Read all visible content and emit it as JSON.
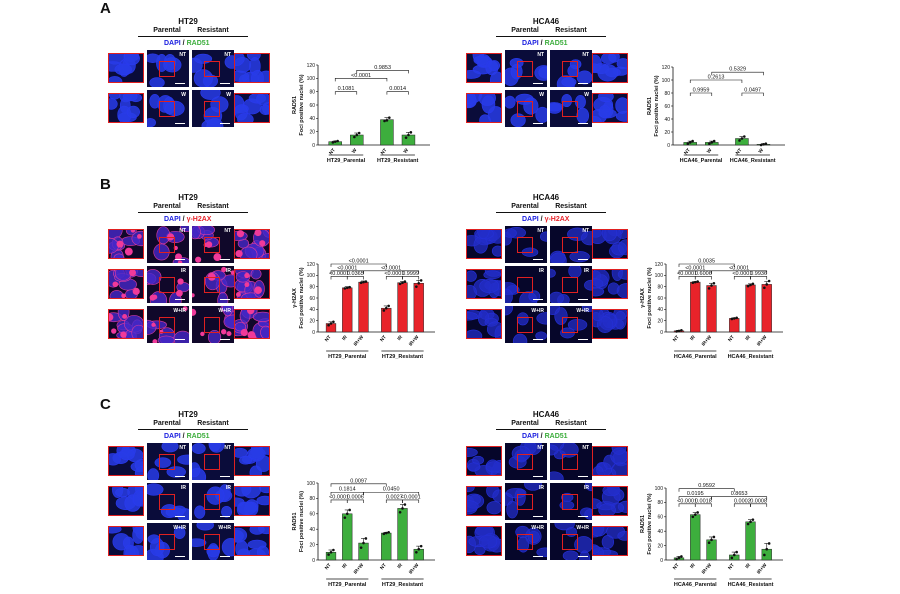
{
  "panels": {
    "A": "A",
    "B": "B",
    "C": "C"
  },
  "groups": {
    "parental": "Parental",
    "resistant": "Resistant"
  },
  "stains": {
    "dapi": "DAPI",
    "rad51": "RAD51",
    "h2ax": "γ-H2AX",
    "sep": "/"
  },
  "colors": {
    "green": "#3dae3d",
    "red": "#e8232a",
    "blue": "#1a1ee0",
    "frame": "#e02020"
  },
  "micro_panels": [
    {
      "id": "A1",
      "cell_line": "HT29",
      "stain": "rad51",
      "rows": [
        "NT",
        "W"
      ],
      "x": 108,
      "y": 17,
      "tint": "blue"
    },
    {
      "id": "A2",
      "cell_line": "HCA46",
      "stain": "rad51",
      "rows": [
        "NT",
        "W"
      ],
      "x": 466,
      "y": 17,
      "tint": "blue"
    },
    {
      "id": "B1",
      "cell_line": "HT29",
      "stain": "h2ax",
      "rows": [
        "NT",
        "IR",
        "W+IR"
      ],
      "x": 108,
      "y": 193,
      "tint": "pink"
    },
    {
      "id": "B2",
      "cell_line": "HCA46",
      "stain": "h2ax",
      "rows": [
        "NT",
        "IR",
        "W+IR"
      ],
      "x": 466,
      "y": 193,
      "tint": "dblue"
    },
    {
      "id": "C1",
      "cell_line": "HT29",
      "stain": "rad51",
      "rows": [
        "NT",
        "IR",
        "W+IR"
      ],
      "x": 108,
      "y": 410,
      "tint": "blue"
    },
    {
      "id": "C2",
      "cell_line": "HCA46",
      "stain": "rad51",
      "rows": [
        "NT",
        "IR",
        "W+IR"
      ],
      "x": 466,
      "y": 410,
      "tint": "dblue"
    }
  ],
  "chart_data": [
    {
      "type": "bar",
      "id": "A-HT29",
      "ylabel": [
        "RAD51",
        "Foci positive nuclei (%)"
      ],
      "ylim": [
        0,
        120
      ],
      "yticks": [
        0,
        20,
        40,
        60,
        80,
        100,
        120
      ],
      "color": "green",
      "groups": [
        "HT29_Parental",
        "HT29_Resistant"
      ],
      "tick_labels": [
        "NT",
        "W",
        "NT",
        "W"
      ],
      "values": [
        5,
        15,
        38,
        15
      ],
      "errors": [
        1,
        3,
        3,
        4
      ],
      "points": [
        [
          4,
          5,
          6
        ],
        [
          12,
          15,
          18
        ],
        [
          36,
          37,
          41
        ],
        [
          11,
          15,
          19
        ]
      ],
      "comparisons": [
        {
          "a": 0,
          "b": 1,
          "label": "0.1081",
          "y": 80
        },
        {
          "a": 2,
          "b": 3,
          "label": "0.0014",
          "y": 80
        },
        {
          "a": 0,
          "b": 2,
          "label": "<0.0001",
          "y": 100
        },
        {
          "a": 1,
          "b": 3,
          "label": "0.9853",
          "y": 112
        }
      ]
    },
    {
      "type": "bar",
      "id": "A-HCA46",
      "ylabel": [
        "RAD51",
        "Foci positive nuclei (%)"
      ],
      "ylim": [
        0,
        120
      ],
      "yticks": [
        0,
        20,
        40,
        60,
        80,
        100,
        120
      ],
      "color": "green",
      "groups": [
        "HCA46_Parental",
        "HCA46_Resistant"
      ],
      "tick_labels": [
        "NT",
        "W",
        "NT",
        "W"
      ],
      "values": [
        4,
        4,
        10,
        1
      ],
      "errors": [
        2,
        2,
        3,
        1
      ],
      "points": [
        [
          2,
          4,
          6
        ],
        [
          2,
          4,
          6
        ],
        [
          7,
          10,
          13
        ],
        [
          0,
          1,
          2
        ]
      ],
      "comparisons": [
        {
          "a": 0,
          "b": 1,
          "label": "0.9959",
          "y": 80
        },
        {
          "a": 2,
          "b": 3,
          "label": "0.0497",
          "y": 80
        },
        {
          "a": 0,
          "b": 2,
          "label": "0.2613",
          "y": 100
        },
        {
          "a": 1,
          "b": 3,
          "label": "0.5329",
          "y": 112
        }
      ]
    },
    {
      "type": "bar",
      "id": "B-HT29",
      "ylabel": [
        "γ-H2AX",
        "Foci positive nuclei (%)"
      ],
      "ylim": [
        0,
        120
      ],
      "yticks": [
        0,
        20,
        40,
        60,
        80,
        100,
        120
      ],
      "color": "red",
      "groups": [
        "HT29_Parental",
        "HT29_Resistant"
      ],
      "tick_labels": [
        "NT",
        "IR",
        "IR+W",
        "NT",
        "IR",
        "IR+W"
      ],
      "values": [
        15,
        78,
        88,
        42,
        87,
        86
      ],
      "errors": [
        3,
        2,
        2,
        4,
        2,
        5
      ],
      "points": [
        [
          12,
          15,
          18
        ],
        [
          77,
          78,
          79
        ],
        [
          87,
          88,
          89
        ],
        [
          38,
          42,
          46
        ],
        [
          85,
          87,
          89
        ],
        [
          80,
          86,
          91
        ]
      ],
      "comparisons": [
        {
          "a": 0,
          "b": 1,
          "label": "<0.0001",
          "y": 98
        },
        {
          "a": 1,
          "b": 2,
          "label": "0.0365",
          "y": 98
        },
        {
          "a": 3,
          "b": 4,
          "label": "<0.0001",
          "y": 98
        },
        {
          "a": 4,
          "b": 5,
          "label": "0.9999",
          "y": 98
        },
        {
          "a": 0,
          "b": 2,
          "label": "<0.0001",
          "y": 108
        },
        {
          "a": 2,
          "b": 5,
          "label": "<0.0001",
          "y": 108
        },
        {
          "a": 0,
          "b": 3,
          "label": "<0.0001",
          "y": 120
        }
      ]
    },
    {
      "type": "bar",
      "id": "B-HCA46",
      "ylabel": [
        "γ-H2AX",
        "Foci positive nuclei (%)"
      ],
      "ylim": [
        0,
        120
      ],
      "yticks": [
        0,
        20,
        40,
        60,
        80,
        100,
        120
      ],
      "color": "red",
      "groups": [
        "HCA46_Parental",
        "HCA46_Resistant"
      ],
      "tick_labels": [
        "NT",
        "IR",
        "IR+W",
        "NT",
        "IR",
        "IR+W"
      ],
      "values": [
        2,
        88,
        82,
        24,
        83,
        84
      ],
      "errors": [
        1,
        1,
        4,
        1,
        2,
        5
      ],
      "points": [
        [
          1,
          2,
          3
        ],
        [
          87,
          88,
          89
        ],
        [
          77,
          82,
          86
        ],
        [
          23,
          24,
          25
        ],
        [
          81,
          83,
          85
        ],
        [
          78,
          84,
          90
        ]
      ],
      "comparisons": [
        {
          "a": 0,
          "b": 1,
          "label": "<0.0001",
          "y": 98
        },
        {
          "a": 1,
          "b": 2,
          "label": "0.6006",
          "y": 98
        },
        {
          "a": 3,
          "b": 4,
          "label": "<0.0001",
          "y": 98
        },
        {
          "a": 4,
          "b": 5,
          "label": "0.9936",
          "y": 98
        },
        {
          "a": 0,
          "b": 2,
          "label": "<0.0001",
          "y": 108
        },
        {
          "a": 2,
          "b": 5,
          "label": "<0.0001",
          "y": 108
        },
        {
          "a": 0,
          "b": 3,
          "label": "0.0035",
          "y": 120
        }
      ]
    },
    {
      "type": "bar",
      "id": "C-HT29",
      "ylabel": [
        "RAD51",
        "Foci positive nuclei (%)"
      ],
      "ylim": [
        0,
        100
      ],
      "yticks": [
        0,
        20,
        40,
        60,
        80,
        100
      ],
      "color": "green",
      "groups": [
        "HT29_Parental",
        "HT29_Resistant"
      ],
      "tick_labels": [
        "NT",
        "IR",
        "IR+W",
        "NT",
        "IR",
        "IR+W"
      ],
      "values": [
        10,
        60,
        22,
        35,
        67,
        14
      ],
      "errors": [
        3,
        5,
        6,
        1,
        5,
        4
      ],
      "points": [
        [
          7,
          10,
          13
        ],
        [
          55,
          60,
          65
        ],
        [
          16,
          22,
          28
        ],
        [
          34,
          35,
          36
        ],
        [
          62,
          67,
          72
        ],
        [
          10,
          14,
          18
        ]
      ],
      "comparisons": [
        {
          "a": 0,
          "b": 1,
          "label": "<0.0001",
          "y": 78
        },
        {
          "a": 1,
          "b": 2,
          "label": "0.0006",
          "y": 78
        },
        {
          "a": 3,
          "b": 4,
          "label": "0.0027",
          "y": 78
        },
        {
          "a": 4,
          "b": 5,
          "label": "<0.0001",
          "y": 78
        },
        {
          "a": 0,
          "b": 2,
          "label": "0.1814",
          "y": 88
        },
        {
          "a": 2,
          "b": 5,
          "label": "0.0450",
          "y": 88
        },
        {
          "a": 0,
          "b": 3,
          "label": "0.0097",
          "y": 99
        }
      ]
    },
    {
      "type": "bar",
      "id": "C-HCA46",
      "ylabel": [
        "RAD51",
        "Foci positive nuclei (%)"
      ],
      "ylim": [
        0,
        100
      ],
      "yticks": [
        0,
        20,
        40,
        60,
        80,
        100
      ],
      "color": "green",
      "groups": [
        "HCA46_Parental",
        "HCA46_Resistant"
      ],
      "tick_labels": [
        "NT",
        "IR",
        "IR+W",
        "NT",
        "IR",
        "IR+W"
      ],
      "values": [
        3,
        63,
        28,
        7,
        53,
        15
      ],
      "errors": [
        2,
        3,
        4,
        4,
        3,
        8
      ],
      "points": [
        [
          1,
          3,
          5
        ],
        [
          60,
          63,
          66
        ],
        [
          24,
          28,
          32
        ],
        [
          3,
          7,
          11
        ],
        [
          50,
          53,
          56
        ],
        [
          7,
          15,
          23
        ]
      ],
      "comparisons": [
        {
          "a": 0,
          "b": 1,
          "label": "<0.0001",
          "y": 78
        },
        {
          "a": 1,
          "b": 2,
          "label": "0.0018",
          "y": 78
        },
        {
          "a": 3,
          "b": 4,
          "label": "0.0002",
          "y": 78
        },
        {
          "a": 4,
          "b": 5,
          "label": "0.0008",
          "y": 78
        },
        {
          "a": 0,
          "b": 2,
          "label": "0.0195",
          "y": 88
        },
        {
          "a": 2,
          "b": 5,
          "label": "0.8653",
          "y": 88
        },
        {
          "a": 0,
          "b": 3,
          "label": "0.9592",
          "y": 99
        }
      ]
    }
  ]
}
